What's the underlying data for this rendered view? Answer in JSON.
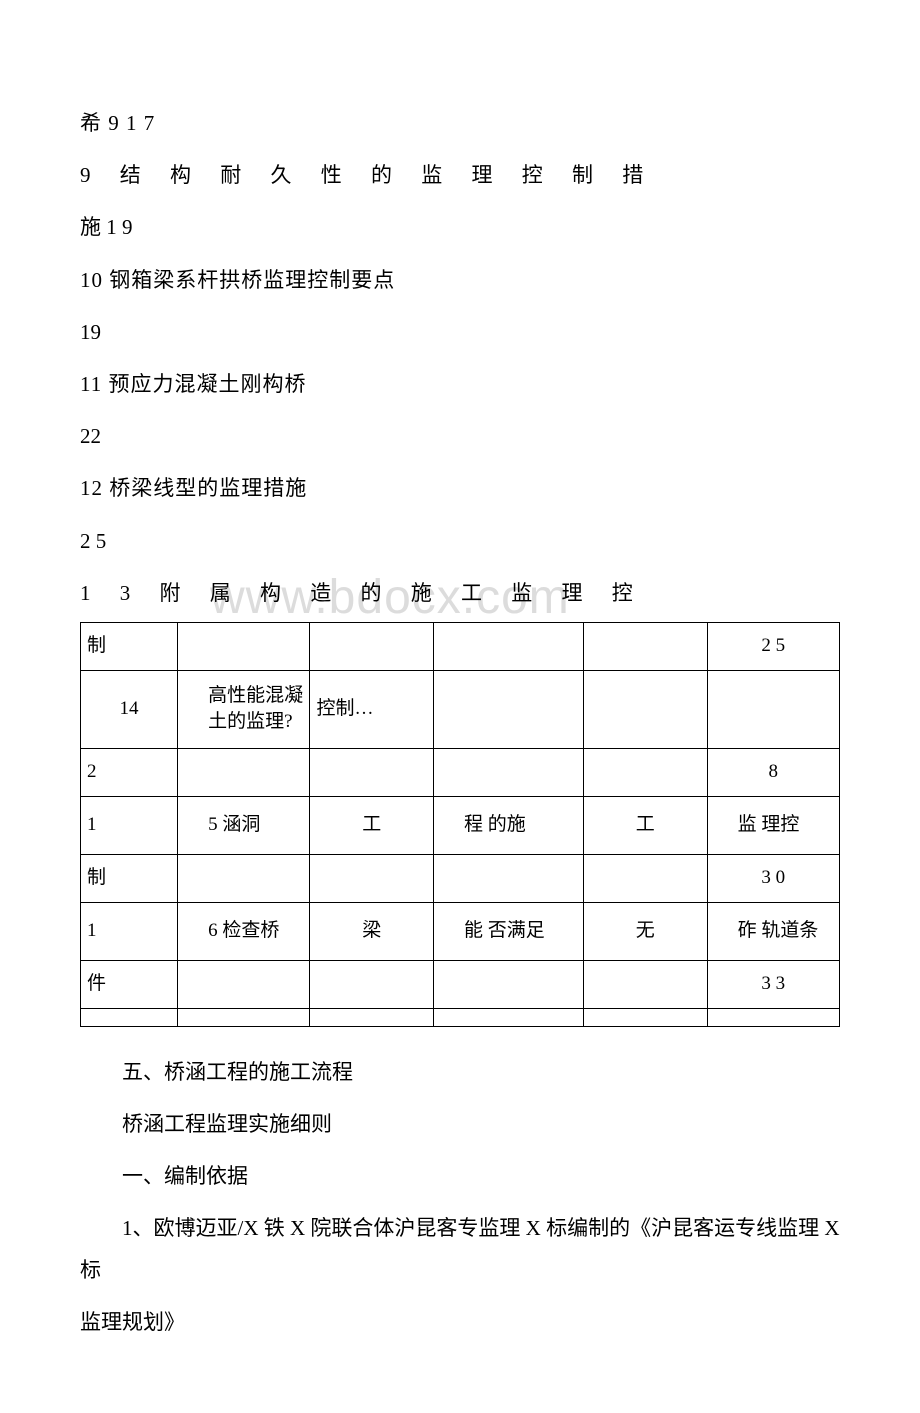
{
  "watermark": "www.bdocx.com",
  "toc": {
    "line1": "希 9  1 7",
    "line2": "9 结 构 耐 久 性 的 监 理 控 制 措",
    "line3": "施  1 9",
    "line4": "10 钢箱梁系杆拱桥监理控制要点",
    "line5": "19",
    "line6": "11 预应力混凝土刚构桥",
    "line7": "22",
    "line8": "12 桥梁线型的监理措施",
    "line9": "2 5",
    "line10": "1 3 附 属 构 造 的 施 工 监 理 控"
  },
  "table": {
    "columns": [
      {
        "class": "col1"
      },
      {
        "class": "col2"
      },
      {
        "class": "col3"
      },
      {
        "class": "col4"
      },
      {
        "class": "col5"
      },
      {
        "class": "col6"
      }
    ],
    "rows": [
      {
        "height": "normal",
        "cells": [
          {
            "t": "制",
            "align": "left"
          },
          {
            "t": "",
            "align": "center"
          },
          {
            "t": "",
            "align": "center"
          },
          {
            "t": "",
            "align": "center"
          },
          {
            "t": "",
            "align": "center"
          },
          {
            "t": "2 5",
            "align": "center"
          }
        ]
      },
      {
        "height": "tall",
        "cells": [
          {
            "t": "14",
            "align": "center"
          },
          {
            "t": "高性能混凝土的监理?",
            "align": "right"
          },
          {
            "t": "控制…",
            "align": "left"
          },
          {
            "t": "",
            "align": "center"
          },
          {
            "t": "",
            "align": "center"
          },
          {
            "t": "",
            "align": "center"
          }
        ]
      },
      {
        "height": "normal",
        "cells": [
          {
            "t": "2",
            "align": "left"
          },
          {
            "t": "",
            "align": "center"
          },
          {
            "t": "",
            "align": "center"
          },
          {
            "t": "",
            "align": "center"
          },
          {
            "t": "",
            "align": "center"
          },
          {
            "t": "8",
            "align": "center"
          }
        ]
      },
      {
        "height": "med",
        "cells": [
          {
            "t": "1",
            "align": "left"
          },
          {
            "t": "5 涵洞",
            "align": "right"
          },
          {
            "t": "工",
            "align": "center"
          },
          {
            "t": "程 的施",
            "align": "right"
          },
          {
            "t": "工",
            "align": "center"
          },
          {
            "t": "监 理控",
            "align": "right"
          }
        ]
      },
      {
        "height": "normal",
        "cells": [
          {
            "t": "制",
            "align": "left"
          },
          {
            "t": "",
            "align": "center"
          },
          {
            "t": "",
            "align": "center"
          },
          {
            "t": "",
            "align": "center"
          },
          {
            "t": "",
            "align": "center"
          },
          {
            "t": "3 0",
            "align": "center"
          }
        ]
      },
      {
        "height": "med",
        "cells": [
          {
            "t": "1",
            "align": "left"
          },
          {
            "t": "6 检查桥",
            "align": "right"
          },
          {
            "t": "梁",
            "align": "center"
          },
          {
            "t": "能 否满足",
            "align": "right"
          },
          {
            "t": "无",
            "align": "center"
          },
          {
            "t": "砟 轨道条",
            "align": "right"
          }
        ]
      },
      {
        "height": "normal",
        "cells": [
          {
            "t": "件",
            "align": "left"
          },
          {
            "t": "",
            "align": "center"
          },
          {
            "t": "",
            "align": "center"
          },
          {
            "t": "",
            "align": "center"
          },
          {
            "t": "",
            "align": "center"
          },
          {
            "t": "3 3",
            "align": "center"
          }
        ]
      }
    ],
    "emptyRow": true
  },
  "body": {
    "p1": "五、桥涵工程的施工流程",
    "p2": "桥涵工程监理实施细则",
    "p3": "一、编制依据",
    "p4": "1、欧博迈亚/X 铁 X 院联合体沪昆客专监理 X 标编制的《沪昆客运专线监理 X 标",
    "p5": "监理规划》"
  }
}
